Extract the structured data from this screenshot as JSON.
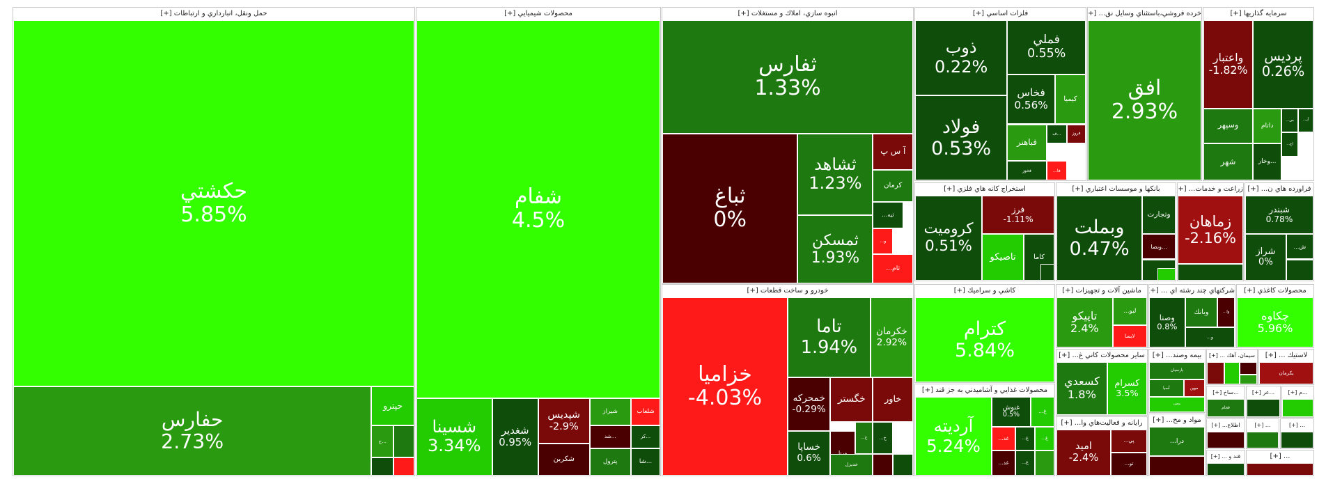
{
  "colors": {
    "strong_up": "#33ff00",
    "up": "#22cc00",
    "mild_up": "#2a9a10",
    "slight_up": "#1e7a10",
    "flat": "#0f4d0a",
    "zero": "#4a0000",
    "slight_down": "#7a0a0a",
    "down": "#a01010",
    "strong_down": "#ff1a1a"
  },
  "chart_data": {
    "type": "treemap",
    "sectors": [
      {
        "name": "حمل ونقل، انبارداري و ارتباطات [+]",
        "tiles": [
          {
            "symbol": "حكشتي",
            "change": "5.85%",
            "color": "strong_up"
          },
          {
            "symbol": "حفارس",
            "change": "2.73%",
            "color": "mild_up"
          },
          {
            "symbol": "حپترو",
            "change": "",
            "color": "up"
          },
          {
            "symbol": "ح...",
            "change": "",
            "color": "mild_up"
          },
          {
            "symbol": "",
            "change": "",
            "color": "slight_up"
          },
          {
            "symbol": "",
            "change": "",
            "color": "flat"
          },
          {
            "symbol": "",
            "change": "",
            "color": "strong_down"
          }
        ]
      },
      {
        "name": "محصولات شيميايي [+]",
        "tiles": [
          {
            "symbol": "شفام",
            "change": "4.5%",
            "color": "strong_up"
          },
          {
            "symbol": "شسينا",
            "change": "3.34%",
            "color": "up"
          },
          {
            "symbol": "شغدير",
            "change": "0.95%",
            "color": "flat"
          },
          {
            "symbol": "شپديس",
            "change": "-2.9%",
            "color": "slight_down"
          },
          {
            "symbol": "شكربن",
            "change": "",
            "color": "zero"
          },
          {
            "symbol": "شيراز",
            "change": "",
            "color": "mild_up"
          },
          {
            "symbol": "شلعاب",
            "change": "",
            "color": "strong_down"
          },
          {
            "symbol": "شد...",
            "change": "",
            "color": "zero"
          },
          {
            "symbol": "پترول",
            "change": "",
            "color": "slight_up"
          },
          {
            "symbol": "كر...",
            "change": "",
            "color": "flat"
          },
          {
            "symbol": "شا...",
            "change": "",
            "color": "flat"
          }
        ]
      },
      {
        "name": "انبوه سازي، املاك و مستغلات [+]",
        "tiles": [
          {
            "symbol": "ثفارس",
            "change": "1.33%",
            "color": "slight_up"
          },
          {
            "symbol": "ثباغ",
            "change": "0%",
            "color": "zero"
          },
          {
            "symbol": "ثشاهد",
            "change": "1.23%",
            "color": "slight_up"
          },
          {
            "symbol": "آ س پ",
            "change": "",
            "color": "slight_down"
          },
          {
            "symbol": "كرمان",
            "change": "",
            "color": "slight_up"
          },
          {
            "symbol": "ثمسكن",
            "change": "1.93%",
            "color": "slight_up"
          },
          {
            "symbol": "...ثيه",
            "change": "",
            "color": "flat"
          },
          {
            "symbol": "...و",
            "change": "",
            "color": "strong_down"
          },
          {
            "symbol": "...ثام",
            "change": "",
            "color": "strong_down"
          }
        ]
      },
      {
        "name": "فلزات اساسي [+]",
        "tiles": [
          {
            "symbol": "ذوب",
            "change": "0.22%",
            "color": "flat"
          },
          {
            "symbol": "فولاد",
            "change": "0.53%",
            "color": "flat"
          },
          {
            "symbol": "فملي",
            "change": "0.55%",
            "color": "flat"
          },
          {
            "symbol": "فخاس",
            "change": "0.56%",
            "color": "flat"
          },
          {
            "symbol": "كيميا",
            "change": "",
            "color": "mild_up"
          },
          {
            "symbol": "فباهنر",
            "change": "",
            "color": "mild_up"
          },
          {
            "symbol": "ف...",
            "change": "",
            "color": "flat"
          },
          {
            "symbol": "فروز",
            "change": "",
            "color": "slight_down"
          },
          {
            "symbol": "فخوز",
            "change": "",
            "color": "flat"
          },
          {
            "symbol": "...فا",
            "change": "",
            "color": "strong_down"
          }
        ]
      },
      {
        "name": "خرده فروشي،باستثناي وسايل نق... [+]",
        "tiles": [
          {
            "symbol": "افق",
            "change": "2.93%",
            "color": "mild_up"
          }
        ]
      },
      {
        "name": "سرمايه گذاريها [+]",
        "tiles": [
          {
            "symbol": "واعتبار",
            "change": "-1.82%",
            "color": "slight_down"
          },
          {
            "symbol": "پرديس",
            "change": "0.26%",
            "color": "flat"
          },
          {
            "symbol": "وسپهر",
            "change": "",
            "color": "slight_up"
          },
          {
            "symbol": "داتام",
            "change": "",
            "color": "mild_up"
          },
          {
            "symbol": "...س",
            "change": "",
            "color": "flat"
          },
          {
            "symbol": "...آر",
            "change": "",
            "color": "flat"
          },
          {
            "symbol": "شهر",
            "change": "",
            "color": "slight_up"
          },
          {
            "symbol": "وخار...",
            "change": "",
            "color": "flat"
          },
          {
            "symbol": "...اع",
            "change": "",
            "color": "flat"
          }
        ]
      },
      {
        "name": "استخراج كانه هاي فلزي [+]",
        "tiles": [
          {
            "symbol": "كروميت",
            "change": "0.51%",
            "color": "flat"
          },
          {
            "symbol": "فرز",
            "change": "-1.11%",
            "color": "slight_down"
          },
          {
            "symbol": "تاصيكو",
            "change": "",
            "color": "up"
          },
          {
            "symbol": "كاما",
            "change": "",
            "color": "flat"
          },
          {
            "symbol": "",
            "change": "",
            "color": "flat"
          }
        ]
      },
      {
        "name": "بانكها و موسسات اعتباري [+]",
        "tiles": [
          {
            "symbol": "وبملت",
            "change": "0.47%",
            "color": "flat"
          },
          {
            "symbol": "وتجارت",
            "change": "",
            "color": "flat"
          },
          {
            "symbol": "وبصا...",
            "change": "",
            "color": "zero"
          },
          {
            "symbol": "",
            "change": "",
            "color": "flat"
          },
          {
            "symbol": "",
            "change": "",
            "color": "up"
          }
        ]
      },
      {
        "name": "زراعت و خدمات... [+]",
        "tiles": [
          {
            "symbol": "زماهان",
            "change": "-2.16%",
            "color": "down"
          },
          {
            "symbol": "",
            "change": "",
            "color": "flat"
          }
        ]
      },
      {
        "name": "فراورده هاي ن... [+]",
        "tiles": [
          {
            "symbol": "شبندر",
            "change": "0.78%",
            "color": "flat"
          },
          {
            "symbol": "شراز",
            "change": "0%",
            "color": "flat"
          },
          {
            "symbol": "...ش",
            "change": "",
            "color": "flat"
          },
          {
            "symbol": "",
            "change": "",
            "color": "flat"
          }
        ]
      },
      {
        "name": "خودرو و ساخت قطعات [+]",
        "tiles": [
          {
            "symbol": "خزاميا",
            "change": "-4.03%",
            "color": "strong_down"
          },
          {
            "symbol": "تاما",
            "change": "1.94%",
            "color": "slight_up"
          },
          {
            "symbol": "خكرمان",
            "change": "2.92%",
            "color": "mild_up"
          },
          {
            "symbol": "خمحركه",
            "change": "-0.29%",
            "color": "zero"
          },
          {
            "symbol": "خگستر",
            "change": "",
            "color": "slight_down"
          },
          {
            "symbol": "خاور",
            "change": "",
            "color": "slight_down"
          },
          {
            "symbol": "خساپا",
            "change": "0.6%",
            "color": "flat"
          },
          {
            "symbol": "ورنا",
            "change": "",
            "color": "zero"
          },
          {
            "symbol": "...خ",
            "change": "",
            "color": "slight_up"
          },
          {
            "symbol": "...خ",
            "change": "",
            "color": "flat"
          },
          {
            "symbol": "خديزل",
            "change": "",
            "color": "slight_up"
          },
          {
            "symbol": "",
            "change": "",
            "color": "zero"
          },
          {
            "symbol": "",
            "change": "",
            "color": "flat"
          }
        ]
      },
      {
        "name": "كاشي و سراميك [+]",
        "tiles": [
          {
            "symbol": "كترام",
            "change": "5.84%",
            "color": "strong_up"
          }
        ]
      },
      {
        "name": "محصولات غذايي و آشاميدني به جز قند [+]",
        "tiles": [
          {
            "symbol": "آرديته",
            "change": "5.24%",
            "color": "strong_up"
          },
          {
            "symbol": "غنوش",
            "change": "0.5%",
            "color": "flat"
          },
          {
            "symbol": "...غ",
            "change": "",
            "color": "up"
          },
          {
            "symbol": "...غد",
            "change": "",
            "color": "strong_down"
          },
          {
            "symbol": "...غ",
            "change": "",
            "color": "flat"
          },
          {
            "symbol": "...غ",
            "change": "",
            "color": "up"
          },
          {
            "symbol": "...غد",
            "change": "",
            "color": "zero"
          },
          {
            "symbol": "...غ",
            "change": "",
            "color": "flat"
          },
          {
            "symbol": "",
            "change": "",
            "color": "mild_up"
          }
        ]
      },
      {
        "name": "ماشين آلات و تجهيزات [+]",
        "tiles": [
          {
            "symbol": "تاپيكو",
            "change": "2.4%",
            "color": "mild_up"
          },
          {
            "symbol": "...لبو",
            "change": "",
            "color": "mild_up"
          },
          {
            "symbol": "لابسا",
            "change": "",
            "color": "strong_down"
          }
        ]
      },
      {
        "name": "شركتهاي چند رشته اي ... [+]",
        "tiles": [
          {
            "symbol": "وصنا",
            "change": "0.8%",
            "color": "flat"
          },
          {
            "symbol": "وبانك",
            "change": "",
            "color": "slight_up"
          },
          {
            "symbol": "...وا",
            "change": "",
            "color": "zero"
          },
          {
            "symbol": "...و",
            "change": "",
            "color": "flat"
          }
        ]
      },
      {
        "name": "محصولات كاغذي [+]",
        "tiles": [
          {
            "symbol": "چكاوه",
            "change": "5.96%",
            "color": "strong_up"
          }
        ]
      },
      {
        "name": "سایر محصولات كاني غ... [+]",
        "tiles": [
          {
            "symbol": "كسعدي",
            "change": "1.8%",
            "color": "slight_up"
          },
          {
            "symbol": "كسرام",
            "change": "3.5%",
            "color": "up"
          }
        ]
      },
      {
        "name": "بیمه وصند... [+]",
        "tiles": [
          {
            "symbol": "پارسيان",
            "change": "",
            "color": "slight_up"
          },
          {
            "symbol": "آسيا",
            "change": "",
            "color": "slight_up"
          },
          {
            "symbol": "ميهن",
            "change": "",
            "color": "down"
          },
          {
            "symbol": "معين",
            "change": "",
            "color": "up"
          }
        ]
      },
      {
        "name": "سيمان، آهك ... [+]",
        "tiles": [
          {
            "symbol": "",
            "change": "",
            "color": "slight_down"
          },
          {
            "symbol": "",
            "change": "",
            "color": "up"
          },
          {
            "symbol": "",
            "change": "",
            "color": "zero"
          },
          {
            "symbol": "",
            "change": "",
            "color": "mild_up"
          }
        ]
      },
      {
        "name": "لاستيك ... [+]",
        "tiles": [
          {
            "symbol": "يكرمان",
            "change": "",
            "color": "down"
          }
        ]
      },
      {
        "name": "رايانه و فعاليت‌هاي وا... [+]",
        "tiles": [
          {
            "symbol": "اميد",
            "change": "-2.4%",
            "color": "slight_down"
          },
          {
            "symbol": "...پي",
            "change": "",
            "color": "slight_down"
          },
          {
            "symbol": "...تو",
            "change": "",
            "color": "zero"
          }
        ]
      },
      {
        "name": "مواد و مح... [+]",
        "tiles": [
          {
            "symbol": "...درا",
            "change": "",
            "color": "slight_up"
          },
          {
            "symbol": "",
            "change": "",
            "color": "zero"
          }
        ]
      },
      {
        "name": "...ساخ [+]",
        "tiles": [
          {
            "symbol": "فجام",
            "change": "",
            "color": "slight_up"
          }
        ]
      },
      {
        "name": "...عر [+]",
        "tiles": [
          {
            "symbol": "",
            "change": "",
            "color": "flat"
          }
        ]
      },
      {
        "name": "...م [+]",
        "tiles": [
          {
            "symbol": "",
            "change": "",
            "color": "up"
          }
        ]
      },
      {
        "name": "اطلاع... [+]",
        "tiles": [
          {
            "symbol": "",
            "change": "",
            "color": "zero"
          }
        ]
      },
      {
        "name": "... [+]",
        "tiles": [
          {
            "symbol": "",
            "change": "",
            "color": "slight_up"
          }
        ]
      },
      {
        "name": "... [+]",
        "tiles": [
          {
            "symbol": "",
            "change": "",
            "color": "flat"
          }
        ]
      },
      {
        "name": "قند و ... [+]",
        "tiles": [
          {
            "symbol": "",
            "change": "",
            "color": "flat"
          }
        ]
      },
      {
        "name": "... [+]",
        "tiles": [
          {
            "symbol": "",
            "change": "",
            "color": "slight_down"
          }
        ]
      },
      {
        "name": "... [+]",
        "tiles": [
          {
            "symbol": "",
            "change": "",
            "color": "up"
          }
        ]
      }
    ]
  }
}
